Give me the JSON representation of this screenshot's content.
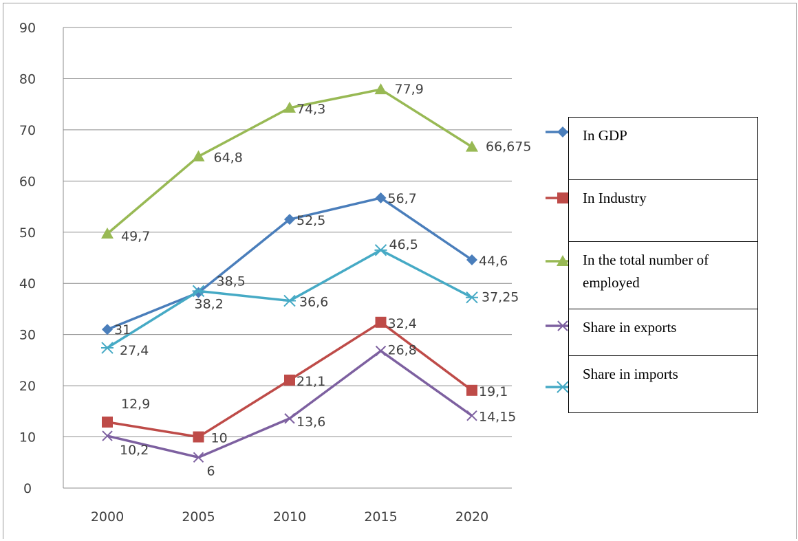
{
  "chart_data": {
    "type": "line",
    "categories": [
      "2000",
      "2005",
      "2010",
      "2015",
      "2020"
    ],
    "ylim": [
      0,
      90
    ],
    "yticks": [
      "0",
      "10",
      "20",
      "30",
      "40",
      "50",
      "60",
      "70",
      "80",
      "90"
    ],
    "grid": true,
    "legend_position": "right",
    "series": [
      {
        "name": "In GDP",
        "color": "#4a7ebb",
        "marker": "diamond",
        "values": [
          31,
          38.2,
          52.5,
          56.7,
          44.6
        ],
        "labels": [
          "31",
          "38,2",
          "52,5",
          "56,7",
          "44,6"
        ]
      },
      {
        "name": "In Industry",
        "color": "#be4b48",
        "marker": "square",
        "values": [
          12.9,
          10,
          21.1,
          32.4,
          19.1
        ],
        "labels": [
          "12,9",
          "10",
          "21,1",
          "32,4",
          "19,1"
        ]
      },
      {
        "name": "In the total number of employed",
        "color": "#98b954",
        "marker": "triangle",
        "values": [
          49.7,
          64.8,
          74.3,
          77.9,
          66.675
        ],
        "labels": [
          "49,7",
          "64,8",
          "74,3",
          "77,9",
          "66,675"
        ]
      },
      {
        "name": "Share in exports",
        "color": "#7d60a0",
        "marker": "x",
        "values": [
          10.2,
          6,
          13.6,
          26.8,
          14.15
        ],
        "labels": [
          "10,2",
          "6",
          "13,6",
          "26,8",
          "14,15"
        ]
      },
      {
        "name": "Share in imports",
        "color": "#46aac5",
        "marker": "asterisk",
        "values": [
          27.4,
          38.5,
          36.6,
          46.5,
          37.25
        ],
        "labels": [
          "27,4",
          "38,5",
          "36,6",
          "46,5",
          "37,25"
        ]
      }
    ]
  },
  "legend": {
    "items": [
      "In GDP",
      "In Industry",
      "In the total number of employed",
      "Share in exports",
      "Share in imports"
    ]
  }
}
